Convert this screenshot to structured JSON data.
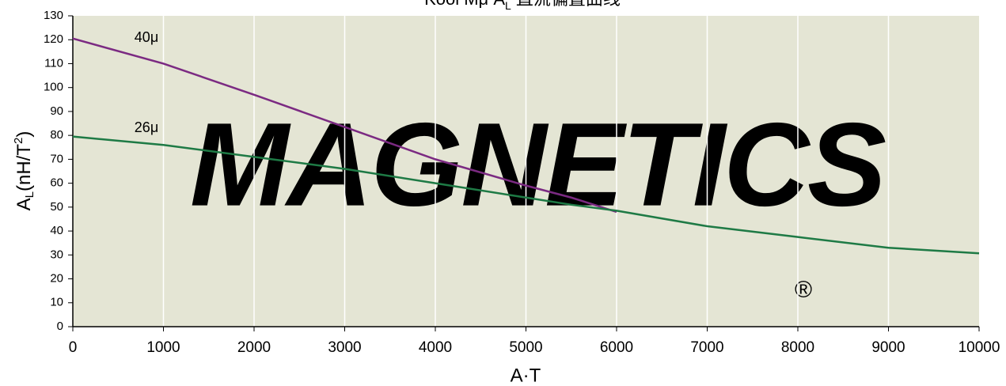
{
  "chart_data": {
    "type": "line",
    "title": {
      "main": "Kool Mμ A",
      "sub": "L",
      "rest": " 直流偏置曲线"
    },
    "ylabel": {
      "main": "A",
      "sub": "L",
      "rest": "(nH/T",
      "sup": "2",
      "end": ")"
    },
    "xlabel": "A·T",
    "watermark": "MAGNETICS",
    "watermark_mark": "®",
    "x": [
      0,
      1000,
      2000,
      3000,
      4000,
      5000,
      5500,
      6000,
      7000,
      8000,
      9000,
      10000
    ],
    "series": [
      {
        "name": "40μ",
        "color": "#7b2a82",
        "values": [
          120.5,
          110,
          97,
          83.5,
          70,
          59,
          54,
          48,
          null,
          null,
          null,
          null
        ]
      },
      {
        "name": "26μ",
        "color": "#1e7a45",
        "values": [
          79.5,
          76,
          71,
          66,
          60,
          54,
          51,
          48.5,
          42,
          37.5,
          33,
          30.7
        ]
      }
    ],
    "xlim": [
      0,
      10000
    ],
    "xticks": [
      0,
      1000,
      2000,
      3000,
      4000,
      5000,
      6000,
      7000,
      8000,
      9000,
      10000
    ],
    "ylim": [
      0,
      130
    ],
    "yticks": [
      0,
      10,
      20,
      30,
      40,
      50,
      60,
      70,
      80,
      90,
      100,
      110,
      120,
      130
    ],
    "grid": "x",
    "background": "#e4e5d4"
  }
}
